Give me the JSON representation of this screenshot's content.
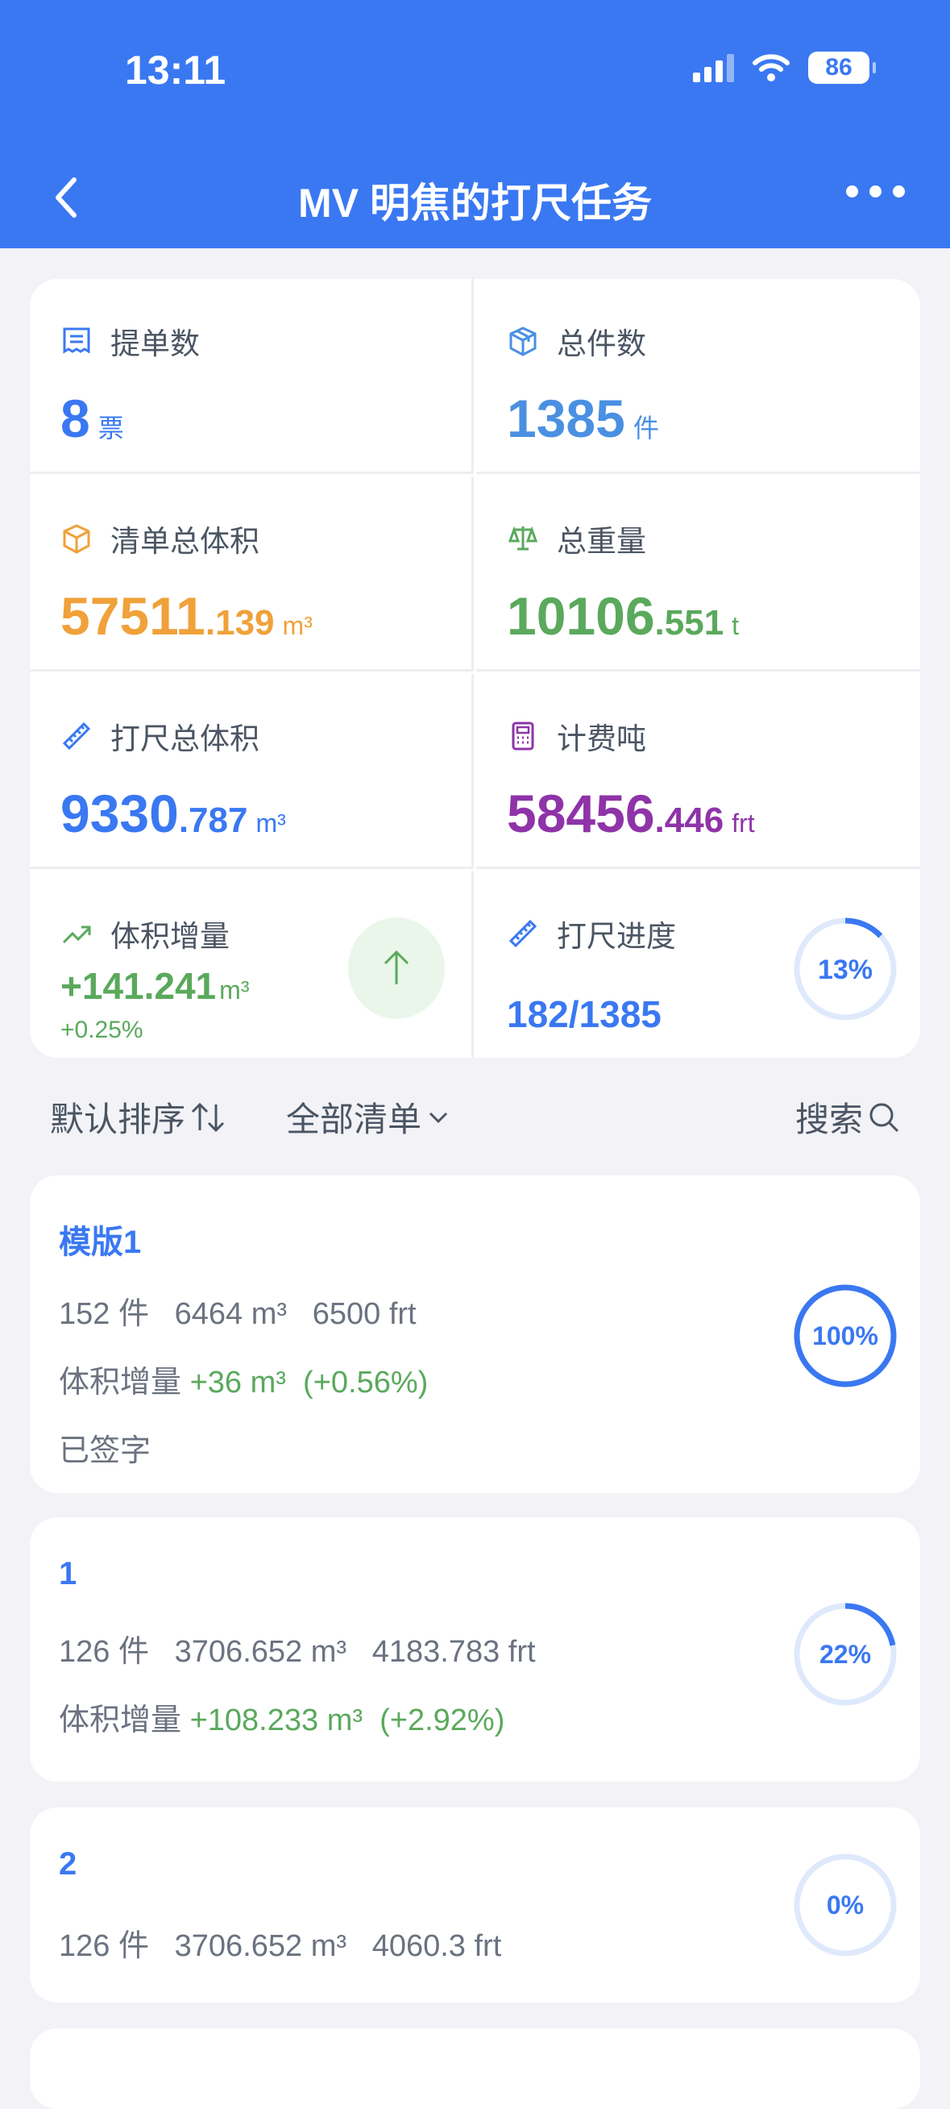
{
  "status_bar": {
    "time": "13:11",
    "battery": "86"
  },
  "nav": {
    "title": "MV 明焦的打尺任务"
  },
  "colors": {
    "primary": "#3a78f2",
    "orange": "#f0a13a",
    "green": "#5aa95c",
    "purple": "#8e33a8"
  },
  "stats": {
    "bills": {
      "label": "提单数",
      "value": "8",
      "unit": "票"
    },
    "pieces": {
      "label": "总件数",
      "value": "1385",
      "unit": "件"
    },
    "list_volume": {
      "label": "清单总体积",
      "int": "57511",
      "dec": ".139",
      "unit": "m³"
    },
    "weight": {
      "label": "总重量",
      "int": "10106",
      "dec": ".551",
      "unit": "t"
    },
    "measured_volume": {
      "label": "打尺总体积",
      "int": "9330",
      "dec": ".787",
      "unit": "m³"
    },
    "freight_ton": {
      "label": "计费吨",
      "int": "58456",
      "dec": ".446",
      "unit": "frt"
    },
    "volume_increase": {
      "label": "体积增量",
      "value": "+141.241",
      "unit": "m³",
      "percent": "+0.25%"
    },
    "progress": {
      "label": "打尺进度",
      "value": "182/1385",
      "percent_label": "13%",
      "fraction": 0.13
    }
  },
  "filters": {
    "sort": "默认排序",
    "list": "全部清单",
    "search": "搜索"
  },
  "items": [
    {
      "name": "模版1",
      "pieces": "152 件",
      "volume": "6464 m³",
      "frt": "6500 frt",
      "inc_label": "体积增量",
      "inc": "+36 m³",
      "inc_pct": "(+0.56%)",
      "status": "已签字",
      "pct_label": "100%",
      "fraction": 1.0
    },
    {
      "name": "1",
      "pieces": "126 件",
      "volume": "3706.652 m³",
      "frt": "4183.783 frt",
      "inc_label": "体积增量",
      "inc": "+108.233 m³",
      "inc_pct": "(+2.92%)",
      "pct_label": "22%",
      "fraction": 0.22
    },
    {
      "name": "2",
      "pieces": "126 件",
      "volume": "3706.652 m³",
      "frt": "4060.3 frt",
      "pct_label": "0%",
      "fraction": 0
    }
  ]
}
